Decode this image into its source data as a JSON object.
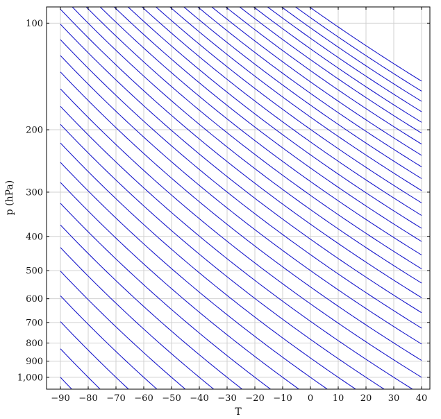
{
  "chart_data": {
    "type": "line",
    "title": "",
    "xlabel": "T",
    "ylabel": "p (hPa)",
    "xlim": [
      -95,
      43
    ],
    "ylim": [
      1080,
      90
    ],
    "y_scale": "log",
    "y_reversed": true,
    "grid": true,
    "legend": "none",
    "line_color": "#1a1acc",
    "x_ticks": [
      -90,
      -80,
      -70,
      -60,
      -50,
      -40,
      -30,
      -20,
      -10,
      0,
      10,
      20,
      30,
      40
    ],
    "y_ticks": [
      100,
      200,
      300,
      400,
      500,
      600,
      700,
      800,
      900,
      1000
    ],
    "x_tick_labels": [
      "−90",
      "−80",
      "−70",
      "−60",
      "−50",
      "−40",
      "−30",
      "−20",
      "−10",
      "0",
      "10",
      "20",
      "30",
      "40"
    ],
    "y_tick_labels": [
      "100",
      "200",
      "300",
      "400",
      "500",
      "600",
      "700",
      "800",
      "900",
      "1,000"
    ],
    "series_kind": "dry adiabats: T(p) = (θ + 273.15)·(p/1000)^0.286 − 273.15",
    "x_range": [
      -90,
      40
    ],
    "series": [
      {
        "theta": -90
      },
      {
        "theta": -80
      },
      {
        "theta": -70
      },
      {
        "theta": -60
      },
      {
        "theta": -50
      },
      {
        "theta": -40
      },
      {
        "theta": -30
      },
      {
        "theta": -20
      },
      {
        "theta": -10
      },
      {
        "theta": 0
      },
      {
        "theta": 10
      },
      {
        "theta": 20
      },
      {
        "theta": 30
      },
      {
        "theta": 40
      },
      {
        "theta": 50
      },
      {
        "theta": 60
      },
      {
        "theta": 70
      },
      {
        "theta": 80
      },
      {
        "theta": 90
      },
      {
        "theta": 100
      },
      {
        "theta": 110
      },
      {
        "theta": 120
      },
      {
        "theta": 130
      },
      {
        "theta": 140
      },
      {
        "theta": 150
      },
      {
        "theta": 160
      },
      {
        "theta": 170
      },
      {
        "theta": 180
      },
      {
        "theta": 190
      },
      {
        "theta": 200
      },
      {
        "theta": 210
      },
      {
        "theta": 220
      },
      {
        "theta": 230
      },
      {
        "theta": 240
      },
      {
        "theta": 250
      },
      {
        "theta": 260
      },
      {
        "theta": 270
      }
    ]
  }
}
